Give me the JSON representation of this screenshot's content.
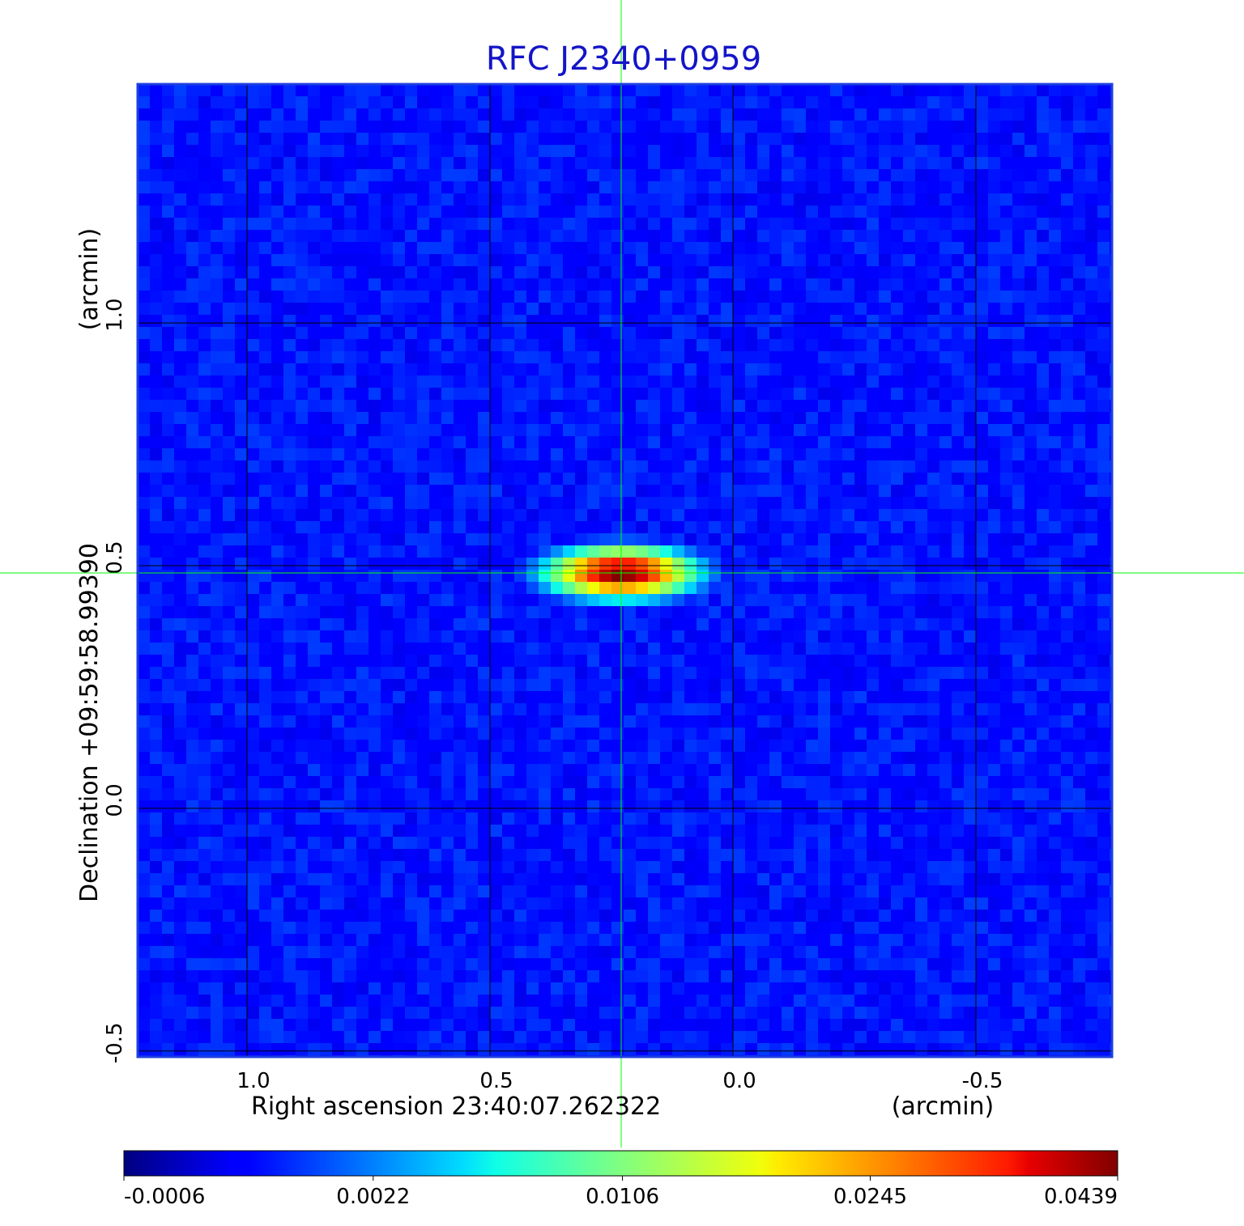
{
  "chart_data": {
    "type": "image",
    "title": "RFC J2340+0959",
    "x_label": "Right ascension  23:40:07.262322",
    "x_unit": "(arcmin)",
    "y_label": "Declination  +09:59:58.99390",
    "y_unit": "(arcmin)",
    "xlim": [
      1.225,
      -0.78
    ],
    "ylim": [
      -0.512,
      1.492
    ],
    "xticks": [
      {
        "value": 1,
        "label": "1.0"
      },
      0.5,
      {
        "value": 0,
        "label": "0.0"
      },
      -0.5
    ],
    "yticks": [
      {
        "value": 1,
        "label": "1.0"
      },
      0.5,
      {
        "value": 0,
        "label": "0.0"
      },
      -0.5
    ],
    "grid": true,
    "crosshair": {
      "x": 0.23,
      "y": 0.485,
      "color": "#00ff00"
    },
    "source": {
      "x": 0.23,
      "y": 0.485,
      "peak": 0.0439
    },
    "colorbar": {
      "colormap": "jet",
      "stretch": "sqrt",
      "clim": [
        -0.0006,
        0.0439
      ],
      "ticks": [
        -0.0006,
        0.0022,
        0.0106,
        0.0245,
        0.0439
      ]
    }
  }
}
